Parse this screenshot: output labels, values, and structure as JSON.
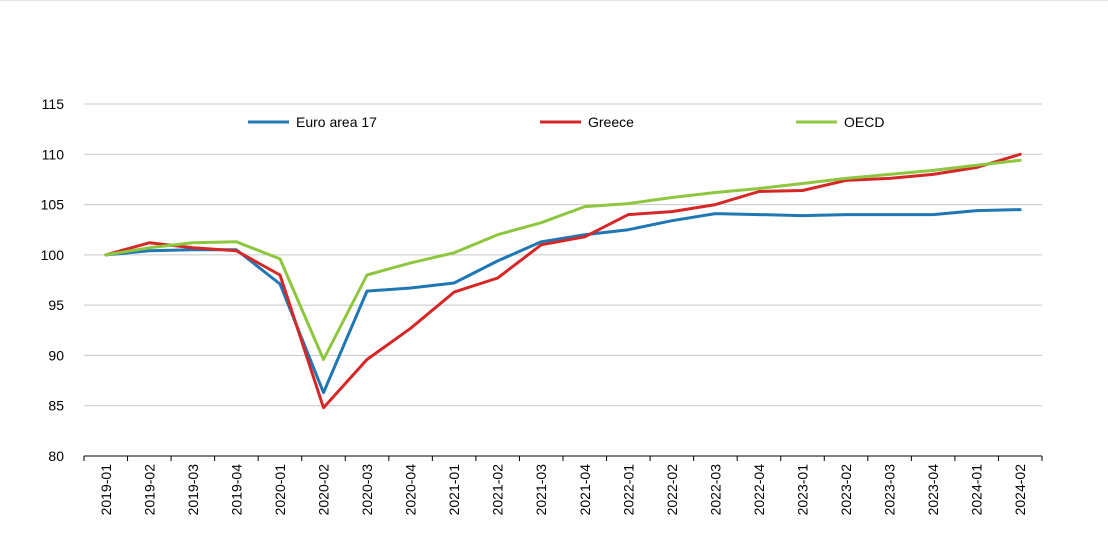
{
  "chart_data": {
    "type": "line",
    "title": "",
    "xlabel": "",
    "ylabel": "",
    "ylim": [
      80,
      115
    ],
    "yticks": [
      80,
      85,
      90,
      95,
      100,
      105,
      110,
      115
    ],
    "grid": true,
    "legend_position": "top",
    "categories": [
      "2019-01",
      "2019-02",
      "2019-03",
      "2019-04",
      "2020-01",
      "2020-02",
      "2020-03",
      "2020-04",
      "2021-01",
      "2021-02",
      "2021-03",
      "2021-04",
      "2022-01",
      "2022-02",
      "2022-03",
      "2022-04",
      "2023-01",
      "2023-02",
      "2023-03",
      "2023-04",
      "2024-01",
      "2024-02"
    ],
    "series": [
      {
        "name": "Euro area 17",
        "color": "#1f77b4",
        "values": [
          100,
          100.4,
          100.5,
          100.5,
          97.1,
          86.3,
          96.4,
          96.7,
          97.2,
          99.4,
          101.3,
          102.0,
          102.5,
          103.4,
          104.1,
          104.0,
          103.9,
          104.0,
          104.0,
          104.0,
          104.4,
          104.5
        ]
      },
      {
        "name": "Greece",
        "color": "#d62728",
        "values": [
          100,
          101.2,
          100.7,
          100.4,
          98.0,
          84.8,
          89.6,
          92.7,
          96.3,
          97.7,
          101.0,
          101.8,
          104.0,
          104.3,
          105.0,
          106.3,
          106.4,
          107.4,
          107.6,
          108.0,
          108.7,
          110.0
        ]
      },
      {
        "name": "OECD",
        "color": "#8dc63f",
        "values": [
          100,
          100.7,
          101.2,
          101.3,
          99.6,
          89.6,
          98.0,
          99.2,
          100.2,
          102.0,
          103.2,
          104.8,
          105.1,
          105.7,
          106.2,
          106.6,
          107.1,
          107.6,
          108.0,
          108.4,
          108.9,
          109.4
        ]
      }
    ]
  }
}
